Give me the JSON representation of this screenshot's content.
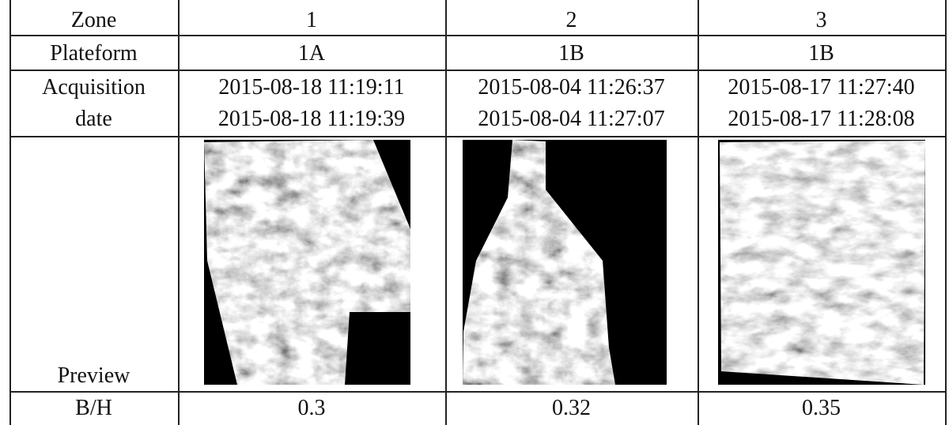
{
  "table": {
    "header": [
      "Zone",
      "1",
      "2",
      "3"
    ],
    "rows": [
      [
        "Plateform",
        "1A",
        "1B",
        "1B"
      ],
      [
        [
          "Acquisition",
          "date"
        ],
        [
          "2015-08-18 11:19:11",
          "2015-08-18 11:19:39"
        ],
        [
          "2015-08-04 11:26:37",
          "2015-08-04 11:27:07"
        ],
        [
          "2015-08-17 11:27:40",
          "2015-08-17 11:28:08"
        ]
      ],
      [
        "Preview"
      ],
      [
        "B/H",
        "0.3",
        "0.32",
        "0.35"
      ]
    ]
  }
}
